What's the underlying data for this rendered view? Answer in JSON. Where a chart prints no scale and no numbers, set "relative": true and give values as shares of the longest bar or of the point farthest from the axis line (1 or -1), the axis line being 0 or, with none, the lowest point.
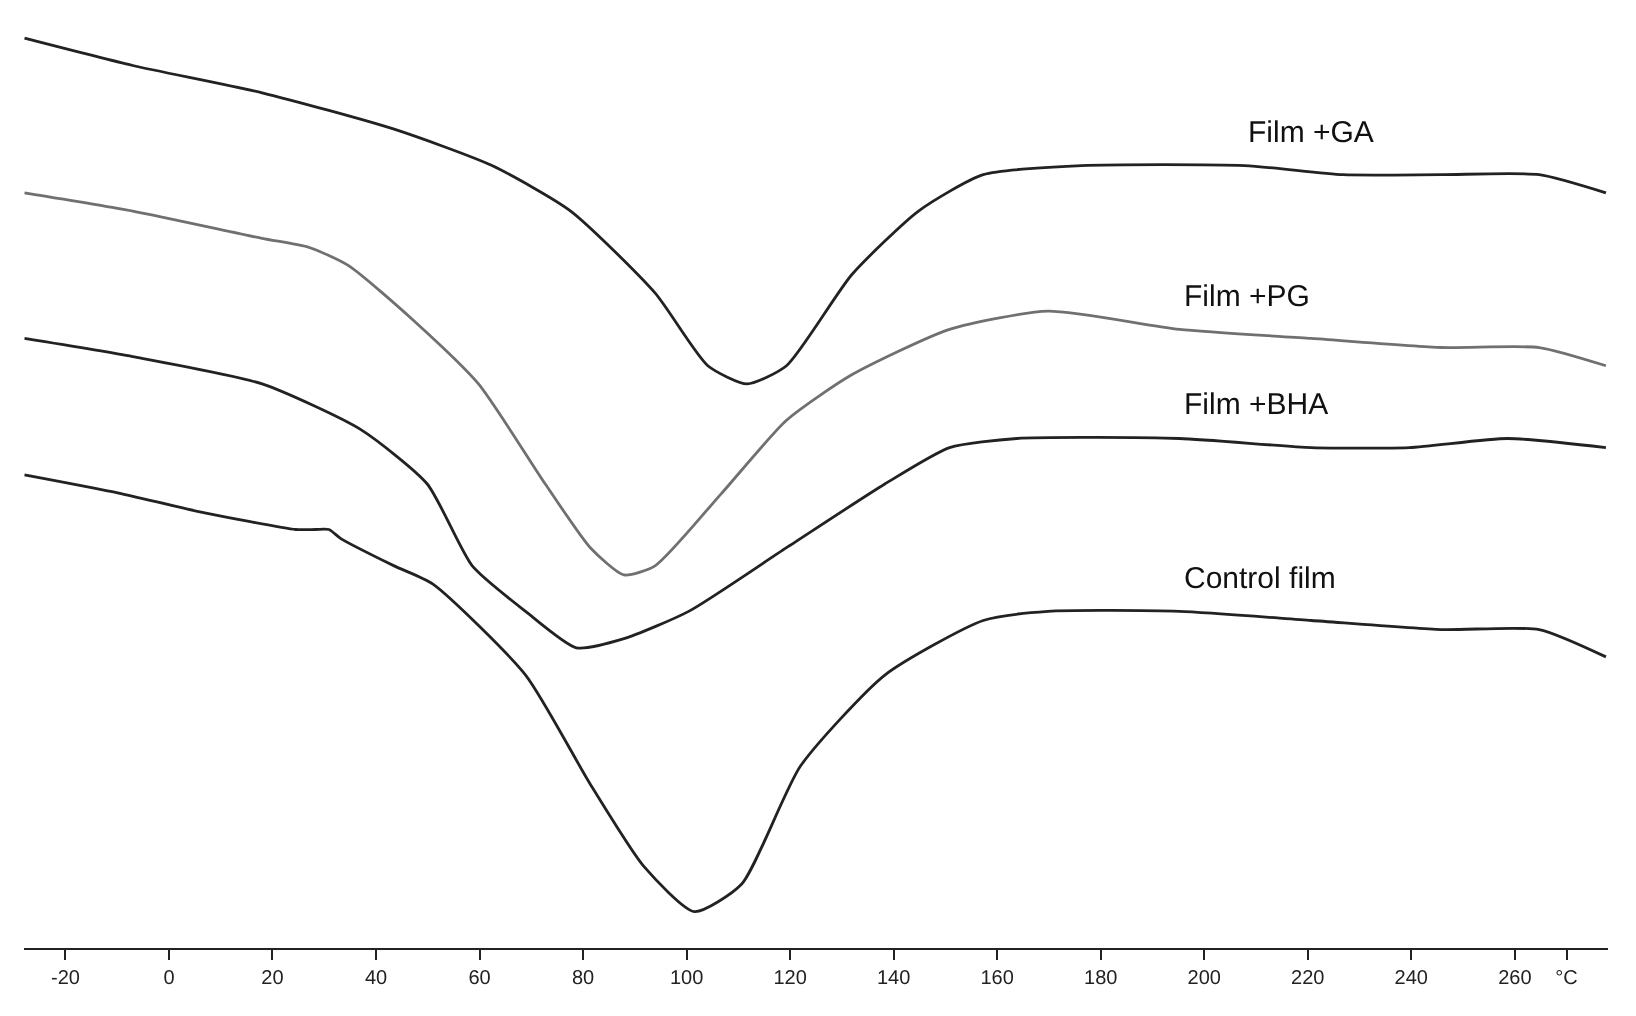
{
  "chart_data": {
    "type": "line",
    "relative": true,
    "legend": false,
    "marker": "none",
    "line_style": "solid",
    "xlim": [
      -28,
      278
    ],
    "xticks": [
      -20,
      0,
      20,
      40,
      60,
      80,
      100,
      120,
      140,
      160,
      180,
      200,
      220,
      240,
      260,
      {
        "value": 270,
        "label": "°C"
      }
    ],
    "series": [
      {
        "name": "Film +GA",
        "color": "#222222",
        "x": [
          -27.9,
          -7.0,
          18.0,
          43.5,
          62.4,
          77.6,
          93.9,
          104.1,
          111.7,
          119.3,
          131.9,
          144.8,
          157.3,
          176.3,
          207.8,
          226.8,
          245.8,
          264.7,
          277.6
        ],
        "values": [
          1.0,
          0.97,
          0.94,
          0.9,
          0.86,
          0.81,
          0.72,
          0.64,
          0.62,
          0.64,
          0.74,
          0.81,
          0.85,
          0.86,
          0.86,
          0.85,
          0.85,
          0.85,
          0.83
        ]
      },
      {
        "name": "Film +PG",
        "color": "#707070",
        "x": [
          -27.9,
          -7.0,
          18.0,
          27.1,
          34.7,
          47.2,
          59.8,
          72.7,
          81.4,
          87.9,
          93.9,
          106.8,
          119.3,
          131.9,
          150.8,
          169.8,
          195.2,
          220.7,
          245.8,
          264.7,
          277.6
        ],
        "values": [
          0.83,
          0.81,
          0.78,
          0.77,
          0.75,
          0.69,
          0.62,
          0.51,
          0.44,
          0.41,
          0.42,
          0.5,
          0.58,
          0.63,
          0.68,
          0.7,
          0.68,
          0.67,
          0.66,
          0.66,
          0.64
        ]
      },
      {
        "name": "Film +BHA",
        "color": "#222222",
        "x": [
          -27.9,
          -7.0,
          18.0,
          37.0,
          49.9,
          58.6,
          68.9,
          78.7,
          87.9,
          100.4,
          119.3,
          138.3,
          150.8,
          163.8,
          195.2,
          220.7,
          239.6,
          258.6,
          277.6
        ],
        "values": [
          0.67,
          0.65,
          0.62,
          0.57,
          0.51,
          0.42,
          0.37,
          0.33,
          0.34,
          0.37,
          0.44,
          0.51,
          0.55,
          0.56,
          0.56,
          0.55,
          0.55,
          0.56,
          0.55
        ]
      },
      {
        "name": "Control film",
        "color": "#222222",
        "x": [
          -27.9,
          -9.7,
          5.5,
          24.5,
          28.3,
          30.9,
          33.2,
          43.5,
          51.0,
          68.9,
          81.4,
          91.7,
          101.5,
          110.6,
          122.0,
          138.3,
          157.3,
          169.8,
          195.2,
          220.7,
          245.8,
          264.7,
          277.6
        ],
        "values": [
          0.52,
          0.5,
          0.48,
          0.46,
          0.46,
          0.46,
          0.45,
          0.42,
          0.4,
          0.3,
          0.18,
          0.09,
          0.04,
          0.07,
          0.2,
          0.3,
          0.36,
          0.37,
          0.37,
          0.36,
          0.35,
          0.35,
          0.32
        ]
      }
    ]
  }
}
